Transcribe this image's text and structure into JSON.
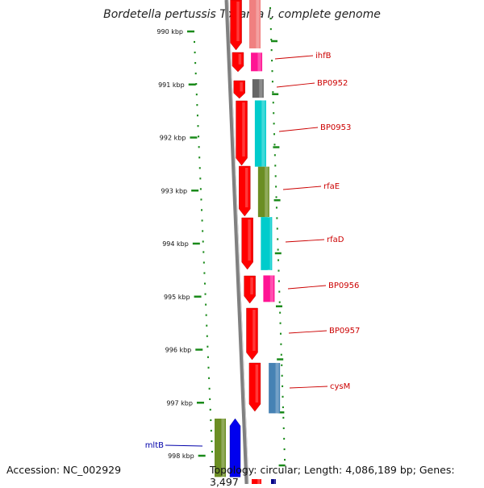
{
  "title": "Bordetella pertussis Tohama I, complete genome",
  "footer": {
    "accession": "Accession: NC_002929",
    "summary": "Topology: circular; Length: 4,086,189 bp; Genes: 3,497"
  },
  "ticks": [
    {
      "label": "990 kbp",
      "kbp": 990
    },
    {
      "label": "991 kbp",
      "kbp": 991
    },
    {
      "label": "992 kbp",
      "kbp": 992
    },
    {
      "label": "993 kbp",
      "kbp": 993
    },
    {
      "label": "994 kbp",
      "kbp": 994
    },
    {
      "label": "995 kbp",
      "kbp": 995
    },
    {
      "label": "996 kbp",
      "kbp": 996
    },
    {
      "label": "997 kbp",
      "kbp": 997
    },
    {
      "label": "998 kbp",
      "kbp": 998
    }
  ],
  "genes": [
    {
      "name": "ihfB",
      "start_kbp": 990.4,
      "end_kbp": 990.75,
      "color": "#ff1493",
      "label_color": "#cc0000",
      "side": "right"
    },
    {
      "name": "BP0952",
      "start_kbp": 990.9,
      "end_kbp": 991.25,
      "color": "#666666",
      "label_color": "#cc0000",
      "side": "right"
    },
    {
      "name": "BP0953",
      "start_kbp": 991.3,
      "end_kbp": 992.55,
      "color": "#00cccc",
      "label_color": "#cc0000",
      "side": "right"
    },
    {
      "name": "rfaE",
      "start_kbp": 992.55,
      "end_kbp": 993.5,
      "color": "#6b8e23",
      "label_color": "#cc0000",
      "side": "right"
    },
    {
      "name": "rfaD",
      "start_kbp": 993.5,
      "end_kbp": 994.5,
      "color": "#00cccc",
      "label_color": "#cc0000",
      "side": "right"
    },
    {
      "name": "BP0956",
      "start_kbp": 994.6,
      "end_kbp": 995.1,
      "color": "#ff1493",
      "label_color": "#cc0000",
      "side": "right"
    },
    {
      "name": "BP0957",
      "start_kbp": 995.2,
      "end_kbp": 996.2,
      "color": "#ff0000",
      "label_color": "#cc0000",
      "side": "right"
    },
    {
      "name": "cysM",
      "start_kbp": 996.25,
      "end_kbp": 997.2,
      "color": "#4682b4",
      "label_color": "#cc0000",
      "side": "right"
    },
    {
      "name": "mltB",
      "start_kbp": 997.3,
      "end_kbp": 998.4,
      "color": "#0000ee",
      "label_color": "#0000aa",
      "side": "left"
    }
  ]
}
